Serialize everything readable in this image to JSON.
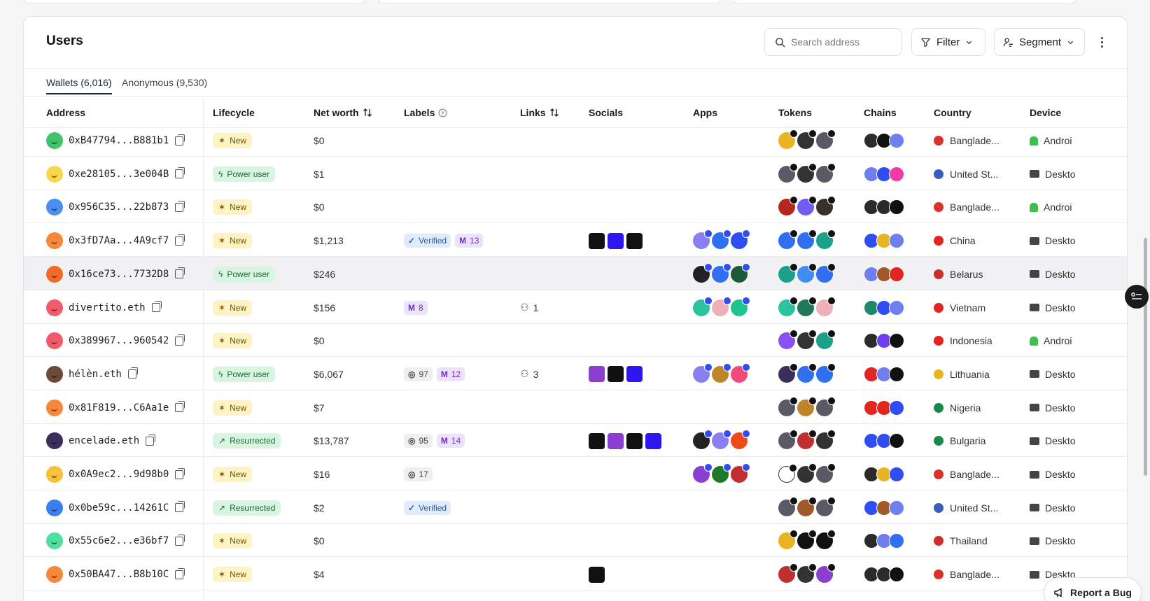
{
  "panel": {
    "title": "Users",
    "search_placeholder": "Search address",
    "filter_label": "Filter",
    "segment_label": "Segment"
  },
  "tabs": [
    {
      "label": "Wallets (6,016)",
      "active": true
    },
    {
      "label": "Anonymous (9,530)",
      "active": false
    }
  ],
  "columns": [
    "Address",
    "Lifecycle",
    "Net worth",
    "Labels",
    "Links",
    "Socials",
    "Apps",
    "Tokens",
    "Chains",
    "Country",
    "Device"
  ],
  "colors": {
    "accent": "#1b2a3a",
    "new_badge": "#fdf3c4",
    "power_badge": "#d9f5e2",
    "verified_chip": "#e1ecfb",
    "m_chip": "#ece2fb"
  },
  "rows": [
    {
      "address": "0xB47794...B881b1",
      "avatar": "#3fc36b",
      "lifecycle": "New",
      "lifecycle_kind": "new",
      "net_worth": "$0",
      "labels": [],
      "links": "",
      "socials": [],
      "apps": [],
      "tokens": [
        "#e9b322",
        "#333333",
        "#5a5a66"
      ],
      "chains": [
        "#2b2b2b",
        "#111111",
        "#6f7ff0"
      ],
      "country": "Bangladesh",
      "country_display": "Banglade...",
      "flag": "#d8322b",
      "device": "Android",
      "device_display": "Androi"
    },
    {
      "address": "0xe28105...3e004B",
      "avatar": "#f7d74c",
      "lifecycle": "Power user",
      "lifecycle_kind": "power",
      "net_worth": "$1",
      "labels": [],
      "links": "",
      "socials": [],
      "apps": [],
      "tokens": [
        "#5a5a66",
        "#333333",
        "#5a5a66"
      ],
      "chains": [
        "#6f7ff0",
        "#2f4df0",
        "#f03aa8"
      ],
      "country": "United States",
      "country_display": "United St...",
      "flag": "#3b5db8",
      "device": "Desktop",
      "device_display": "Deskto"
    },
    {
      "address": "0x956C35...22b873",
      "avatar": "#4a8ff0",
      "lifecycle": "New",
      "lifecycle_kind": "new",
      "net_worth": "$0",
      "labels": [],
      "links": "",
      "socials": [],
      "apps": [],
      "tokens": [
        "#b5261f",
        "#6d5df0",
        "#3a2f2a"
      ],
      "chains": [
        "#2b2b2b",
        "#2b2b2b",
        "#111111"
      ],
      "country": "Bangladesh",
      "country_display": "Banglade...",
      "flag": "#d8322b",
      "device": "Android",
      "device_display": "Androi"
    },
    {
      "address": "0x3fD7Aa...4A9cf7",
      "avatar": "#f5883a",
      "lifecycle": "New",
      "lifecycle_kind": "new",
      "net_worth": "$1,213",
      "labels": [
        {
          "kind": "verified",
          "text": "Verified"
        },
        {
          "kind": "m",
          "text": "13"
        }
      ],
      "links": "",
      "socials": [
        "#111111",
        "#2d16f0",
        "#111111"
      ],
      "apps": [
        "#8a7ff0",
        "#2f6ff0",
        "#2f4df0"
      ],
      "tokens": [
        "#2f6ff0",
        "#2f6ff0",
        "#1ba08a"
      ],
      "chains": [
        "#2f4df0",
        "#e9b322",
        "#6f7ff0"
      ],
      "country": "China",
      "country_display": "China",
      "flag": "#e0261f",
      "device": "Desktop",
      "device_display": "Deskto"
    },
    {
      "address": "0x16ce73...7732D8",
      "avatar": "#f06a2a",
      "lifecycle": "Power user",
      "lifecycle_kind": "power",
      "net_worth": "$246",
      "labels": [],
      "links": "",
      "socials": [],
      "apps": [
        "#222222",
        "#2f6ff0",
        "#1e5a3a"
      ],
      "tokens": [
        "#1ba08a",
        "#3f8ff0",
        "#2f6ff0"
      ],
      "chains": [
        "#6f7ff0",
        "#a05a2a",
        "#e0261f"
      ],
      "country": "Belarus",
      "country_display": "Belarus",
      "flag": "#c9302c",
      "device": "Desktop",
      "device_display": "Deskto",
      "highlight": true
    },
    {
      "address": "divertito.eth",
      "avatar": "#f05a6a",
      "lifecycle": "New",
      "lifecycle_kind": "new",
      "net_worth": "$156",
      "labels": [
        {
          "kind": "m",
          "text": "8"
        }
      ],
      "links": "1",
      "socials": [],
      "apps": [
        "#2bc4a0",
        "#f0b0b8",
        "#1fc48a"
      ],
      "tokens": [
        "#2bc4a0",
        "#1e7a5a",
        "#f0b0b8"
      ],
      "chains": [
        "#1e8a6a",
        "#2f4df0",
        "#6f7ff0"
      ],
      "country": "Vietnam",
      "country_display": "Vietnam",
      "flag": "#e0261f",
      "device": "Desktop",
      "device_display": "Deskto"
    },
    {
      "address": "0x389967...960542",
      "avatar": "#f05a6a",
      "lifecycle": "New",
      "lifecycle_kind": "new",
      "net_worth": "$0",
      "labels": [],
      "links": "",
      "socials": [],
      "apps": [],
      "tokens": [
        "#8a4ff0",
        "#333333",
        "#1ba08a"
      ],
      "chains": [
        "#2b2b2b",
        "#6d3ff0",
        "#111111"
      ],
      "country": "Indonesia",
      "country_display": "Indonesia",
      "flag": "#e0261f",
      "device": "Android",
      "device_display": "Androi"
    },
    {
      "address": "hélèn.eth",
      "avatar": "#6a4a3a",
      "lifecycle": "Power user",
      "lifecycle_kind": "power",
      "net_worth": "$6,067",
      "labels": [
        {
          "kind": "score",
          "text": "97"
        },
        {
          "kind": "m",
          "text": "12"
        }
      ],
      "links": "3",
      "socials": [
        "#8a3fd0",
        "#111111",
        "#2d16f0"
      ],
      "apps": [
        "#8a7ff0",
        "#c0852a",
        "#f04a7a"
      ],
      "tokens": [
        "#3a2f5a",
        "#2f6ff0",
        "#2f6ff0"
      ],
      "chains": [
        "#e0261f",
        "#6f7ff0",
        "#111111"
      ],
      "country": "Lithuania",
      "country_display": "Lithuania",
      "flag": "#e9b322",
      "device": "Desktop",
      "device_display": "Deskto"
    },
    {
      "address": "0x81F819...C6Aa1e",
      "avatar": "#f5883a",
      "lifecycle": "New",
      "lifecycle_kind": "new",
      "net_worth": "$7",
      "labels": [],
      "links": "",
      "socials": [],
      "apps": [],
      "tokens": [
        "#5a5a66",
        "#c0852a",
        "#5a5a66"
      ],
      "chains": [
        "#e0261f",
        "#e0261f",
        "#2f4df0"
      ],
      "country": "Nigeria",
      "country_display": "Nigeria",
      "flag": "#1a8a4a",
      "device": "Desktop",
      "device_display": "Deskto"
    },
    {
      "address": "encelade.eth",
      "avatar": "#3a2f5a",
      "lifecycle": "Resurrected",
      "lifecycle_kind": "res",
      "net_worth": "$13,787",
      "labels": [
        {
          "kind": "score",
          "text": "95"
        },
        {
          "kind": "m",
          "text": "14"
        }
      ],
      "links": "",
      "socials": [
        "#111111",
        "#8a3fd0",
        "#111111",
        "#2d16f0"
      ],
      "apps": [
        "#222222",
        "#8a7ff0",
        "#f04a1a"
      ],
      "tokens": [
        "#5a5a66",
        "#c02f2f",
        "#333333"
      ],
      "chains": [
        "#2f4df0",
        "#2f4df0",
        "#111111"
      ],
      "country": "Bulgaria",
      "country_display": "Bulgaria",
      "flag": "#1a8a4a",
      "device": "Desktop",
      "device_display": "Deskto"
    },
    {
      "address": "0x0A9ec2...9d98b0",
      "avatar": "#f7c23a",
      "lifecycle": "New",
      "lifecycle_kind": "new",
      "net_worth": "$16",
      "labels": [
        {
          "kind": "score",
          "text": "17"
        }
      ],
      "links": "",
      "socials": [],
      "apps": [
        "#8a3fd0",
        "#1e7a2a",
        "#c02f2f"
      ],
      "tokens": [
        "#ffffff",
        "#333333",
        "#5a5a66"
      ],
      "chains": [
        "#2b2b2b",
        "#e9b322",
        "#2f4df0"
      ],
      "country": "Bangladesh",
      "country_display": "Banglade...",
      "flag": "#d8322b",
      "device": "Desktop",
      "device_display": "Deskto"
    },
    {
      "address": "0x0be59c...14261C",
      "avatar": "#3a7ff0",
      "lifecycle": "Resurrected",
      "lifecycle_kind": "res",
      "net_worth": "$2",
      "labels": [
        {
          "kind": "verified",
          "text": "Verified"
        }
      ],
      "links": "",
      "socials": [],
      "apps": [],
      "tokens": [
        "#5a5a66",
        "#a05a2a",
        "#5a5a66"
      ],
      "chains": [
        "#2f4df0",
        "#a05a2a",
        "#6f7ff0"
      ],
      "country": "United States",
      "country_display": "United St...",
      "flag": "#3b5db8",
      "device": "Desktop",
      "device_display": "Deskto"
    },
    {
      "address": "0x55c6e2...e36bf7",
      "avatar": "#4fe0a0",
      "lifecycle": "New",
      "lifecycle_kind": "new",
      "net_worth": "$0",
      "labels": [],
      "links": "",
      "socials": [],
      "apps": [],
      "tokens": [
        "#e9b322",
        "#111111",
        "#111111"
      ],
      "chains": [
        "#2b2b2b",
        "#6f7ff0",
        "#2f6ff0"
      ],
      "country": "Thailand",
      "country_display": "Thailand",
      "flag": "#c9302c",
      "device": "Desktop",
      "device_display": "Deskto"
    },
    {
      "address": "0x50BA47...B8b10C",
      "avatar": "#f5883a",
      "lifecycle": "New",
      "lifecycle_kind": "new",
      "net_worth": "$4",
      "labels": [],
      "links": "",
      "socials": [
        "#111111"
      ],
      "apps": [],
      "tokens": [
        "#c02f2f",
        "#333333",
        "#8a3fd0"
      ],
      "chains": [
        "#2b2b2b",
        "#2b2b2b",
        "#111111"
      ],
      "country": "Bangladesh",
      "country_display": "Banglade...",
      "flag": "#d8322b",
      "device": "Desktop",
      "device_display": "Deskto"
    }
  ],
  "report_bug_label": "Report a Bug"
}
